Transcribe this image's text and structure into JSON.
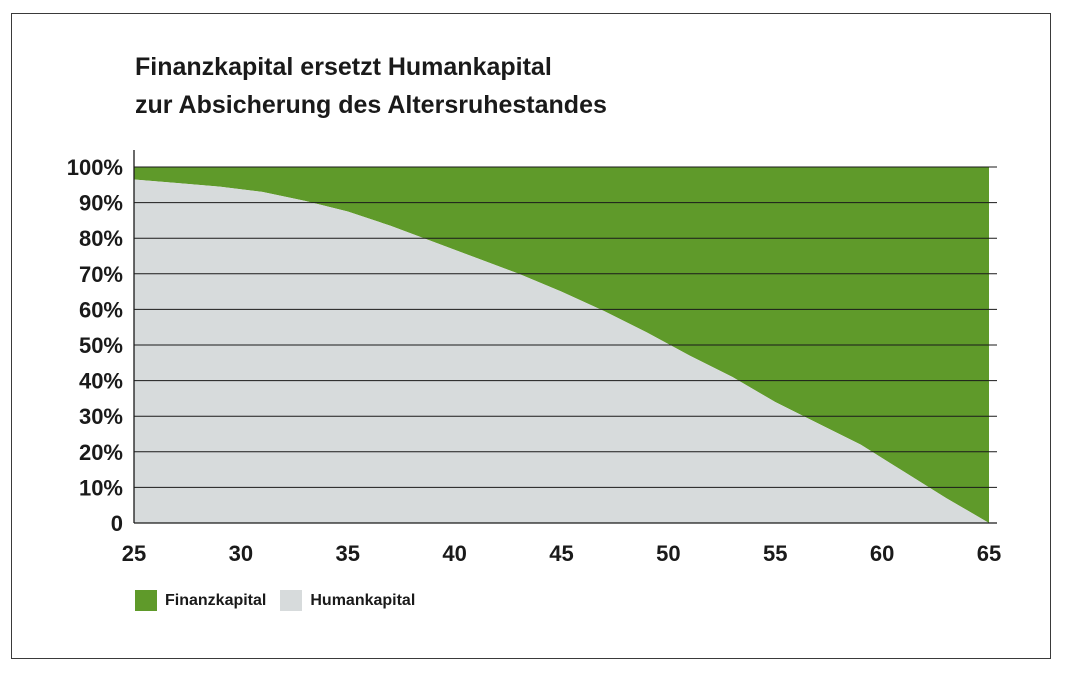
{
  "chart_data": {
    "type": "area",
    "title": "Finanzkapital ersetzt Humankapital",
    "subtitle": "zur Absicherung des Altersruhestandes",
    "x": [
      25,
      27,
      29,
      31,
      33,
      35,
      37,
      39,
      41,
      43,
      45,
      47,
      49,
      51,
      53,
      55,
      57,
      59,
      61,
      63,
      64,
      65
    ],
    "series": [
      {
        "name": "Finanzkapital",
        "color": "#5f9a2a",
        "values": [
          3.5,
          4.5,
          5.5,
          7,
          9.5,
          12.5,
          16.5,
          21,
          25.5,
          30,
          35,
          40.5,
          46.5,
          53,
          59,
          66,
          72,
          78,
          85.5,
          93,
          96.5,
          100
        ]
      },
      {
        "name": "Humankapital",
        "color": "#d7dbdc",
        "values": [
          96.5,
          95.5,
          94.5,
          93,
          90.5,
          87.5,
          83.5,
          79,
          74.5,
          70,
          65,
          59.5,
          53.5,
          47,
          41,
          34,
          28,
          22,
          14.5,
          7,
          3.5,
          0
        ]
      }
    ],
    "stacked": true,
    "xticks": [
      "25",
      "30",
      "35",
      "40",
      "45",
      "50",
      "55",
      "60",
      "65"
    ],
    "yticks": [
      "0",
      "10%",
      "20%",
      "30%",
      "40%",
      "50%",
      "60%",
      "70%",
      "80%",
      "90%",
      "100%"
    ],
    "xlim": [
      25,
      65
    ],
    "ylim": [
      0,
      100
    ],
    "grid": true,
    "legend_position": "bottom-left"
  }
}
